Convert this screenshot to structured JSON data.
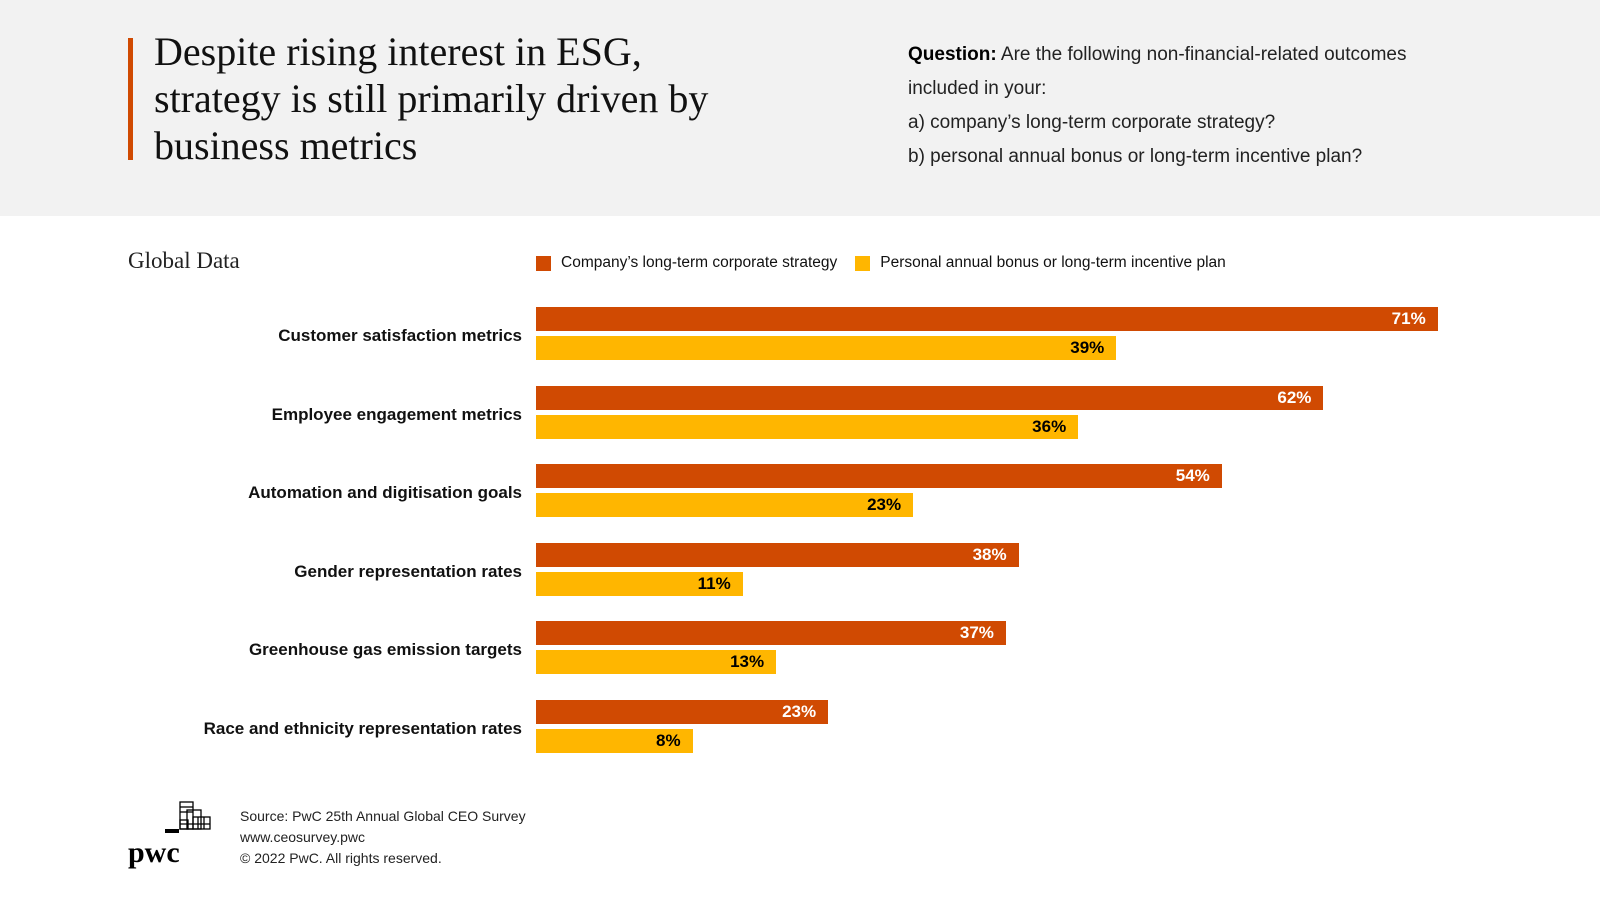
{
  "header": {
    "headline_lines": [
      "Despite rising interest in ESG,",
      "strategy is still primarily driven by",
      "business metrics"
    ],
    "question_label": "Question:",
    "question_text": " Are the following non-financial-related outcomes included in your:",
    "option_a": "a) company’s long-term corporate strategy?",
    "option_b": "b) personal annual bonus or long-term incentive plan?"
  },
  "section_title": "Global Data",
  "colors": {
    "accent": "#d04a02",
    "strategy": "#d04a02",
    "bonus": "#ffb600"
  },
  "chart_data": {
    "type": "bar",
    "orientation": "horizontal",
    "title": "Global Data",
    "categories": [
      "Customer satisfaction metrics",
      "Employee engagement metrics",
      "Automation and digitisation goals",
      "Gender representation rates",
      "Greenhouse gas emission targets",
      "Race and ethnicity representation rates"
    ],
    "series": [
      {
        "name": "Company’s long-term corporate strategy",
        "color": "#d04a02",
        "values": [
          71,
          62,
          54,
          38,
          37,
          23
        ]
      },
      {
        "name": "Personal annual bonus or long-term incentive plan",
        "color": "#ffb600",
        "values": [
          39,
          36,
          23,
          11,
          13,
          8
        ]
      }
    ],
    "value_suffix": "%",
    "xlabel": "",
    "ylabel": "",
    "xlim": [
      0,
      75
    ],
    "grid": false,
    "legend_position": "top"
  },
  "footer": {
    "source": "Source: PwC 25th Annual Global CEO Survey",
    "url": "www.ceosurvey.pwc",
    "copyright": "© 2022 PwC. All rights reserved.",
    "logo_text": "pwc"
  }
}
